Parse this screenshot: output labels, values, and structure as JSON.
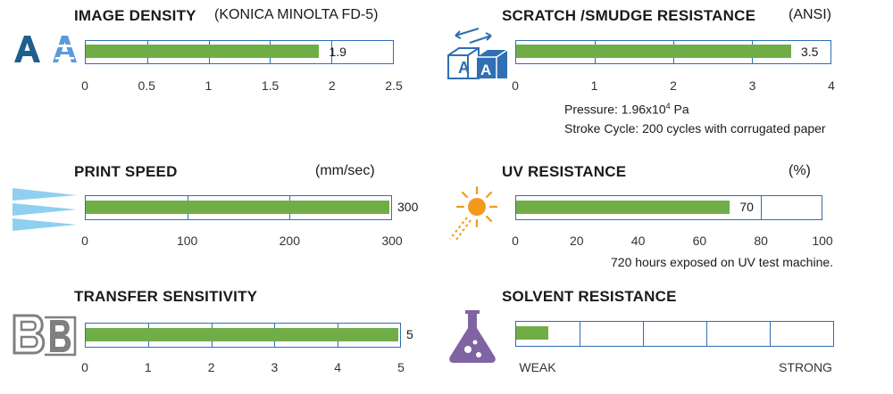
{
  "colors": {
    "bar": "#70ad47",
    "frame": "#2f6fb3",
    "icon_blue": "#2f6fb3",
    "icon_sky": "#8fd0ee",
    "icon_orange": "#f39a1e",
    "icon_gray": "#7f7f7f",
    "icon_purple": "#8064a2"
  },
  "icons": [
    "letter-a-icon",
    "cube-scratch-icon",
    "speed-lines-icon",
    "sun-icon",
    "letter-b-icon",
    "flask-icon"
  ],
  "chart_data": [
    {
      "id": "image_density",
      "type": "bar",
      "title": "IMAGE DENSITY",
      "unit": "(KONICA MINOLTA FD-5)",
      "value": 1.9,
      "value_label": "1.9",
      "xlim": [
        0,
        2.5
      ],
      "ticks": [
        "0",
        "0.5",
        "1",
        "1.5",
        "2",
        "2.5"
      ],
      "dividers": [
        0.5,
        1,
        1.5,
        2
      ]
    },
    {
      "id": "scratch_resistance",
      "type": "bar",
      "title": "SCRATCH /SMUDGE RESISTANCE",
      "unit": "(ANSI)",
      "value": 3.5,
      "value_label": "3.5",
      "xlim": [
        0,
        4
      ],
      "ticks": [
        "0",
        "1",
        "2",
        "3",
        "4"
      ],
      "dividers": [
        1,
        2,
        3
      ],
      "notes": {
        "pressure_prefix": "Pressure: 1.96x10",
        "pressure_exp": "4",
        "pressure_suffix": " Pa",
        "stroke": "Stroke Cycle: 200 cycles with corrugated paper"
      }
    },
    {
      "id": "print_speed",
      "type": "bar",
      "title": "PRINT SPEED",
      "unit": "(mm/sec)",
      "value": 300,
      "value_label": "300",
      "xlim": [
        0,
        300
      ],
      "ticks": [
        "0",
        "100",
        "200",
        "300"
      ],
      "dividers": [
        100,
        200
      ]
    },
    {
      "id": "uv_resistance",
      "type": "bar",
      "title": "UV RESISTANCE",
      "unit": "(%)",
      "value": 70,
      "value_label": "70",
      "xlim": [
        0,
        100
      ],
      "ticks": [
        "0",
        "20",
        "40",
        "60",
        "80",
        "100"
      ],
      "dividers": [
        80
      ],
      "notes": {
        "exposure": "720 hours exposed on UV test machine."
      }
    },
    {
      "id": "transfer_sensitivity",
      "type": "bar",
      "title": "TRANSFER SENSITIVITY",
      "unit": "",
      "value": 5,
      "value_label": "5",
      "xlim": [
        0,
        5
      ],
      "ticks": [
        "0",
        "1",
        "2",
        "3",
        "4",
        "5"
      ],
      "dividers": [
        1,
        2,
        3,
        4
      ]
    },
    {
      "id": "solvent_resistance",
      "type": "bar",
      "title": "SOLVENT RESISTANCE",
      "unit": "",
      "value": 0.5,
      "value_label": "",
      "xlim": [
        0,
        5
      ],
      "ticks": [],
      "dividers": [
        1,
        2,
        3,
        4
      ],
      "end_labels": {
        "low": "WEAK",
        "high": "STRONG"
      }
    }
  ]
}
